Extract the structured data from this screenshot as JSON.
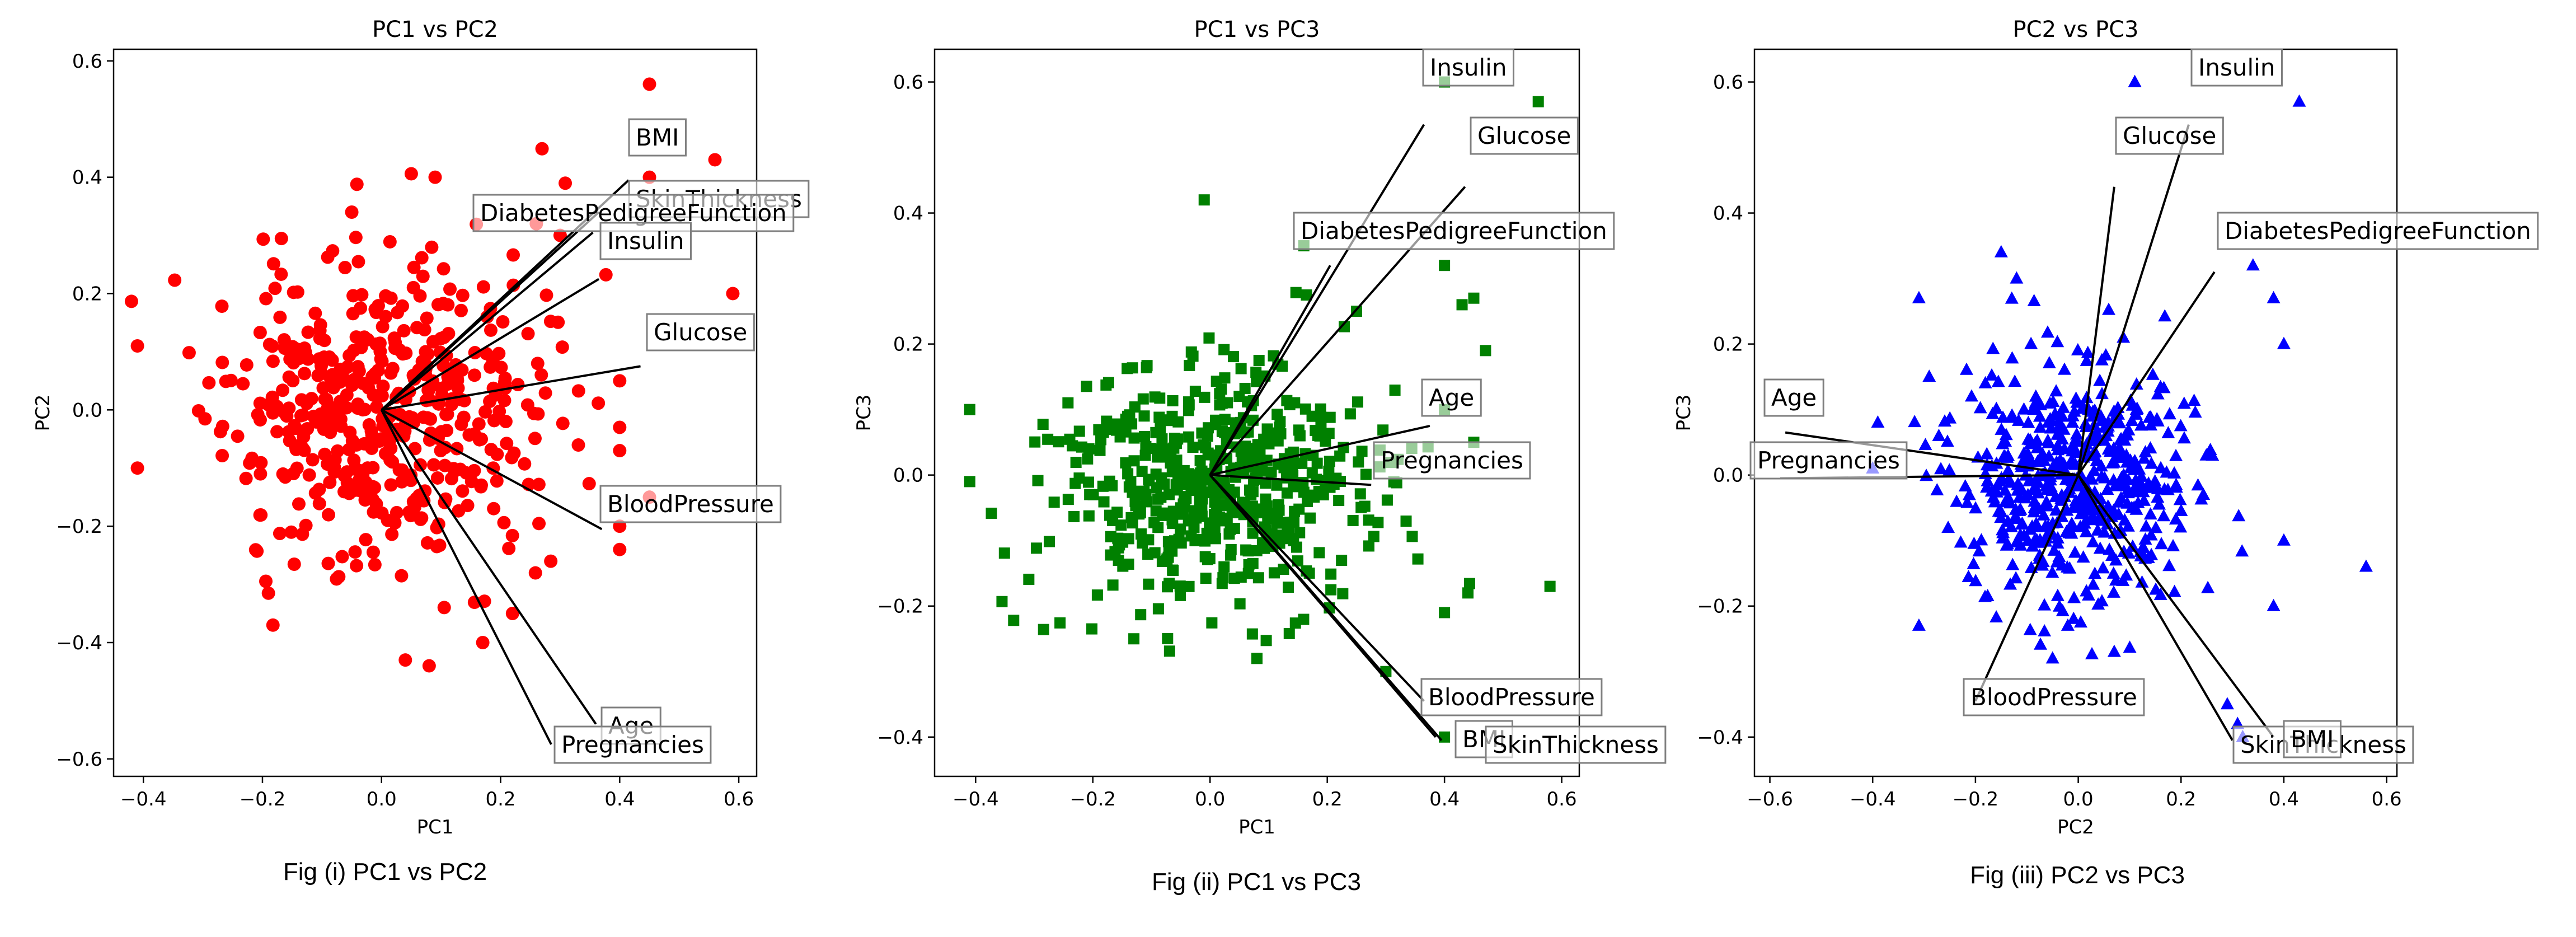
{
  "chart_data": [
    {
      "type": "scatter",
      "title": "PC1 vs PC2",
      "xlabel": "PC1",
      "ylabel": "PC2",
      "xlim": [
        -0.45,
        0.63
      ],
      "ylim": [
        -0.63,
        0.62
      ],
      "xticks": [
        -0.4,
        -0.2,
        0.0,
        0.2,
        0.4,
        0.6
      ],
      "yticks": [
        -0.6,
        -0.4,
        -0.2,
        0.0,
        0.2,
        0.4,
        0.6
      ],
      "xtick_labels": [
        "−0.4",
        "−0.2",
        "0.0",
        "0.2",
        "0.4",
        "0.6"
      ],
      "ytick_labels": [
        "−0.6",
        "−0.4",
        "−0.2",
        "0.0",
        "0.2",
        "0.4",
        "0.6"
      ],
      "grid": false,
      "legend": "none",
      "marker": "circle",
      "color": "#ff0000",
      "cloud": {
        "x_center": 0.0,
        "x_sd": 0.13,
        "y_center": 0.0,
        "y_sd": 0.13,
        "corr": 0.0,
        "seed": 11,
        "n": 480
      },
      "points": [
        [
          0.45,
          0.56
        ],
        [
          0.56,
          0.43
        ],
        [
          0.59,
          0.2
        ],
        [
          0.45,
          0.4
        ],
        [
          0.09,
          0.4
        ],
        [
          -0.05,
          0.34
        ],
        [
          -0.41,
          0.11
        ],
        [
          -0.41,
          -0.1
        ],
        [
          0.08,
          -0.44
        ],
        [
          0.04,
          -0.43
        ],
        [
          0.4,
          -0.03
        ],
        [
          0.45,
          -0.15
        ],
        [
          0.4,
          -0.2
        ],
        [
          0.4,
          -0.24
        ],
        [
          0.17,
          -0.4
        ],
        [
          0.26,
          0.32
        ],
        [
          0.3,
          0.3
        ],
        [
          0.4,
          0.05
        ],
        [
          0.4,
          -0.07
        ],
        [
          0.22,
          -0.35
        ]
      ],
      "vectors": [
        {
          "label": "BMI",
          "x": 0.415,
          "y": 0.395
        },
        {
          "label": "SkinThickness",
          "x": 0.365,
          "y": 0.34
        },
        {
          "label": "DiabetesPedigreeFunction",
          "x": 0.355,
          "y": 0.305
        },
        {
          "label": "Insulin",
          "x": 0.365,
          "y": 0.225
        },
        {
          "label": "Glucose",
          "x": 0.435,
          "y": 0.075
        },
        {
          "label": "BloodPressure",
          "x": 0.37,
          "y": -0.205
        },
        {
          "label": "Age",
          "x": 0.36,
          "y": -0.54
        },
        {
          "label": "Pregnancies",
          "x": 0.285,
          "y": -0.575
        }
      ],
      "caption": "Fig (i) PC1 vs PC2"
    },
    {
      "type": "scatter",
      "title": "PC1 vs PC3",
      "xlabel": "PC1",
      "ylabel": "PC3",
      "xlim": [
        -0.47,
        0.63
      ],
      "ylim": [
        -0.46,
        0.65
      ],
      "xticks": [
        -0.4,
        -0.2,
        0.0,
        0.2,
        0.4,
        0.6
      ],
      "yticks": [
        -0.4,
        -0.2,
        0.0,
        0.2,
        0.4,
        0.6
      ],
      "xtick_labels": [
        "−0.4",
        "−0.2",
        "0.0",
        "0.2",
        "0.4",
        "0.6"
      ],
      "ytick_labels": [
        "−0.4",
        "−0.2",
        "0.0",
        "0.2",
        "0.4",
        "0.6"
      ],
      "grid": false,
      "legend": "none",
      "marker": "square",
      "color": "#008000",
      "cloud": {
        "x_center": 0.0,
        "x_sd": 0.13,
        "y_center": -0.02,
        "y_sd": 0.09,
        "corr": 0.0,
        "seed": 23,
        "n": 520
      },
      "points": [
        [
          0.4,
          0.6
        ],
        [
          0.56,
          0.57
        ],
        [
          0.58,
          -0.17
        ],
        [
          0.4,
          -0.4
        ],
        [
          -0.01,
          0.42
        ],
        [
          0.4,
          0.32
        ],
        [
          0.45,
          0.27
        ],
        [
          0.47,
          0.19
        ],
        [
          0.43,
          0.26
        ],
        [
          0.4,
          -0.21
        ],
        [
          0.44,
          -0.18
        ],
        [
          -0.41,
          0.1
        ],
        [
          -0.41,
          -0.01
        ],
        [
          -0.13,
          -0.25
        ],
        [
          0.08,
          -0.28
        ],
        [
          0.16,
          0.35
        ],
        [
          0.4,
          0.1
        ],
        [
          0.45,
          0.05
        ],
        [
          0.3,
          -0.3
        ],
        [
          0.25,
          0.25
        ]
      ],
      "vectors": [
        {
          "label": "Insulin",
          "x": 0.365,
          "y": 0.535
        },
        {
          "label": "Glucose",
          "x": 0.435,
          "y": 0.44
        },
        {
          "label": "DiabetesPedigreeFunction",
          "x": 0.205,
          "y": 0.32
        },
        {
          "label": "Age",
          "x": 0.375,
          "y": 0.075
        },
        {
          "label": "Pregnancies",
          "x": 0.275,
          "y": -0.015
        },
        {
          "label": "BloodPressure",
          "x": 0.365,
          "y": -0.345
        },
        {
          "label": "BMI",
          "x": 0.395,
          "y": -0.405
        },
        {
          "label": "SkinThickness",
          "x": 0.385,
          "y": -0.4
        }
      ],
      "caption": "Fig (ii) PC1 vs PC3"
    },
    {
      "type": "scatter",
      "title": "PC2 vs PC3",
      "xlabel": "PC2",
      "ylabel": "PC3",
      "xlim": [
        -0.63,
        0.62
      ],
      "ylim": [
        -0.46,
        0.65
      ],
      "xticks": [
        -0.6,
        -0.4,
        -0.2,
        0.0,
        0.2,
        0.4,
        0.6
      ],
      "yticks": [
        -0.4,
        -0.2,
        0.0,
        0.2,
        0.4,
        0.6
      ],
      "xtick_labels": [
        "−0.6",
        "−0.4",
        "−0.2",
        "0.0",
        "0.2",
        "0.4",
        "0.6"
      ],
      "ytick_labels": [
        "−0.4",
        "−0.2",
        "0.0",
        "0.2",
        "0.4",
        "0.6"
      ],
      "grid": false,
      "legend": "none",
      "marker": "triangle",
      "color": "#0000ff",
      "cloud": {
        "x_center": 0.0,
        "x_sd": 0.11,
        "y_center": -0.01,
        "y_sd": 0.09,
        "corr": 0.0,
        "seed": 37,
        "n": 540
      },
      "points": [
        [
          0.11,
          0.6
        ],
        [
          0.43,
          0.57
        ],
        [
          0.56,
          -0.14
        ],
        [
          0.38,
          0.27
        ],
        [
          0.4,
          0.2
        ],
        [
          -0.31,
          0.27
        ],
        [
          -0.4,
          0.01
        ],
        [
          -0.39,
          0.08
        ],
        [
          -0.31,
          -0.23
        ],
        [
          -0.05,
          -0.28
        ],
        [
          0.07,
          -0.27
        ],
        [
          -0.15,
          0.34
        ],
        [
          -0.12,
          0.3
        ],
        [
          0.34,
          0.32
        ],
        [
          0.38,
          -0.2
        ],
        [
          0.29,
          -0.35
        ],
        [
          0.31,
          -0.38
        ],
        [
          0.32,
          -0.4
        ],
        [
          -0.29,
          0.15
        ],
        [
          0.4,
          -0.1
        ]
      ],
      "vectors": [
        {
          "label": "Insulin",
          "x": 0.215,
          "y": 0.535
        },
        {
          "label": "Glucose",
          "x": 0.07,
          "y": 0.44
        },
        {
          "label": "DiabetesPedigreeFunction",
          "x": 0.265,
          "y": 0.31
        },
        {
          "label": "Age",
          "x": -0.57,
          "y": 0.065
        },
        {
          "label": "Pregnancies",
          "x": -0.58,
          "y": -0.005
        },
        {
          "label": "BloodPressure",
          "x": -0.2,
          "y": -0.345
        },
        {
          "label": "SkinThickness",
          "x": 0.3,
          "y": -0.405
        },
        {
          "label": "BMI",
          "x": 0.38,
          "y": -0.4
        }
      ],
      "caption": "Fig (iii) PC2 vs PC3"
    }
  ]
}
